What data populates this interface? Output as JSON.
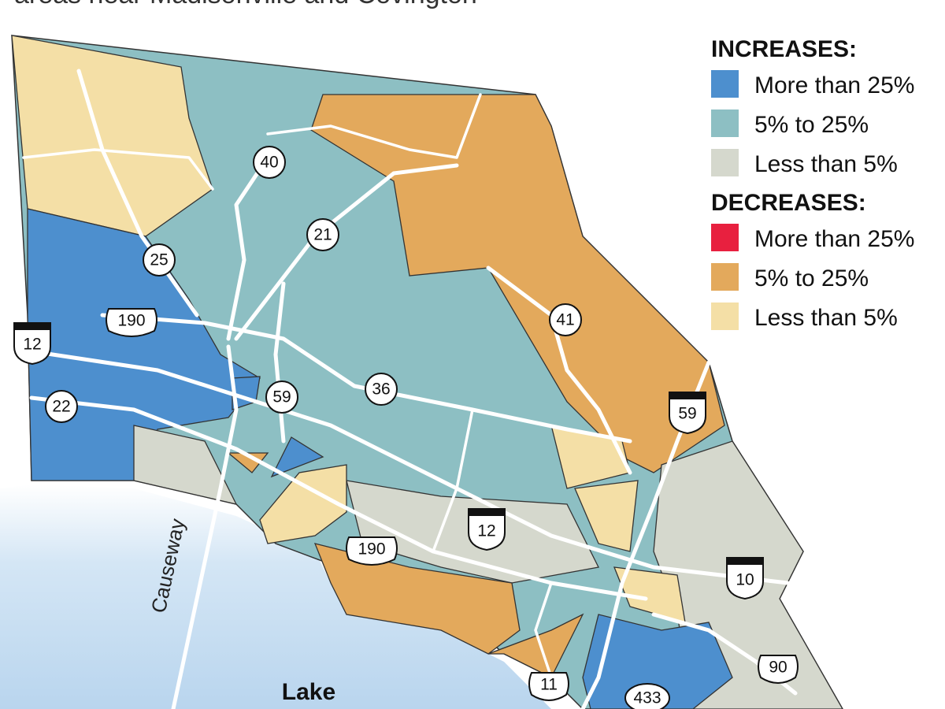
{
  "title": "areas near Madisonville and Covington",
  "legend": [
    {
      "heading": "INCREASES:",
      "items": [
        {
          "label": "More than 25%",
          "color": "#4d8fce"
        },
        {
          "label": "5% to 25%",
          "color": "#8dbfc3"
        },
        {
          "label": "Less than 5%",
          "color": "#d5d8cd"
        }
      ]
    },
    {
      "heading": "DECREASES:",
      "items": [
        {
          "label": "More than 25%",
          "color": "#e8203f"
        },
        {
          "label": "5% to 25%",
          "color": "#e3a95c"
        },
        {
          "label": "Less than 5%",
          "color": "#f4dfa6"
        }
      ]
    }
  ],
  "roads": [
    "40",
    "21",
    "25",
    "190",
    "12",
    "22",
    "59",
    "36",
    "41",
    "59",
    "12",
    "190",
    "10",
    "90",
    "11",
    "433"
  ],
  "places": {
    "causeway": "Causeway",
    "lake": "Lake"
  }
}
